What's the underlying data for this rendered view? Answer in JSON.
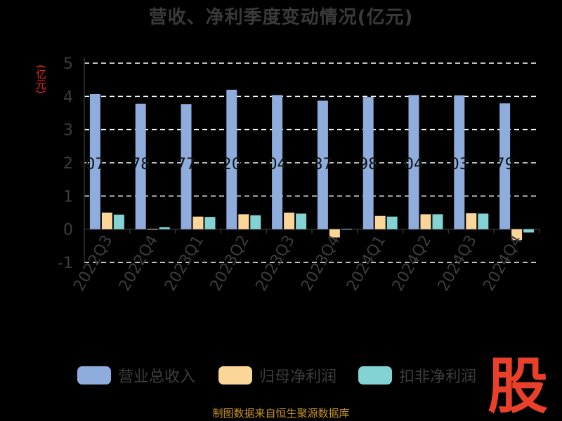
{
  "chart_data": {
    "type": "bar",
    "title": "营收、净利季度变动情况(亿元)",
    "ylabel": "(亿元)",
    "ylim": [
      -1,
      5
    ],
    "yticks": [
      "-1",
      "0",
      "1",
      "2",
      "3",
      "4",
      "5"
    ],
    "grid": true,
    "legend_position": "bottom",
    "categories": [
      "2022Q3",
      "2022Q4",
      "2023Q1",
      "2023Q2",
      "2023Q3",
      "2023Q4",
      "2024Q1",
      "2024Q2",
      "2024Q3",
      "2024Q4"
    ],
    "series": [
      {
        "name": "营业总收入",
        "color": "#8eacdc",
        "values": [
          4.07,
          3.78,
          3.77,
          4.2,
          4.04,
          3.87,
          3.98,
          4.04,
          4.03,
          3.79
        ],
        "labels": [
          "07",
          "78",
          "77",
          "20",
          "04",
          "87",
          "98",
          "04",
          "03",
          "79"
        ]
      },
      {
        "name": "归母净利润",
        "color": "#fcd598",
        "values": [
          0.5,
          0.01,
          0.38,
          0.45,
          0.5,
          -0.25,
          0.4,
          0.45,
          0.48,
          -0.33
        ]
      },
      {
        "name": "扣非净利润",
        "color": "#83d2d4",
        "values": [
          0.44,
          0.06,
          0.37,
          0.42,
          0.47,
          0.01,
          0.38,
          0.45,
          0.47,
          -0.1
        ]
      }
    ]
  },
  "footer": {
    "source": "制图数据来自恒生聚源数据库"
  },
  "watermark": {
    "text": "股",
    "color": "#e8402a"
  }
}
